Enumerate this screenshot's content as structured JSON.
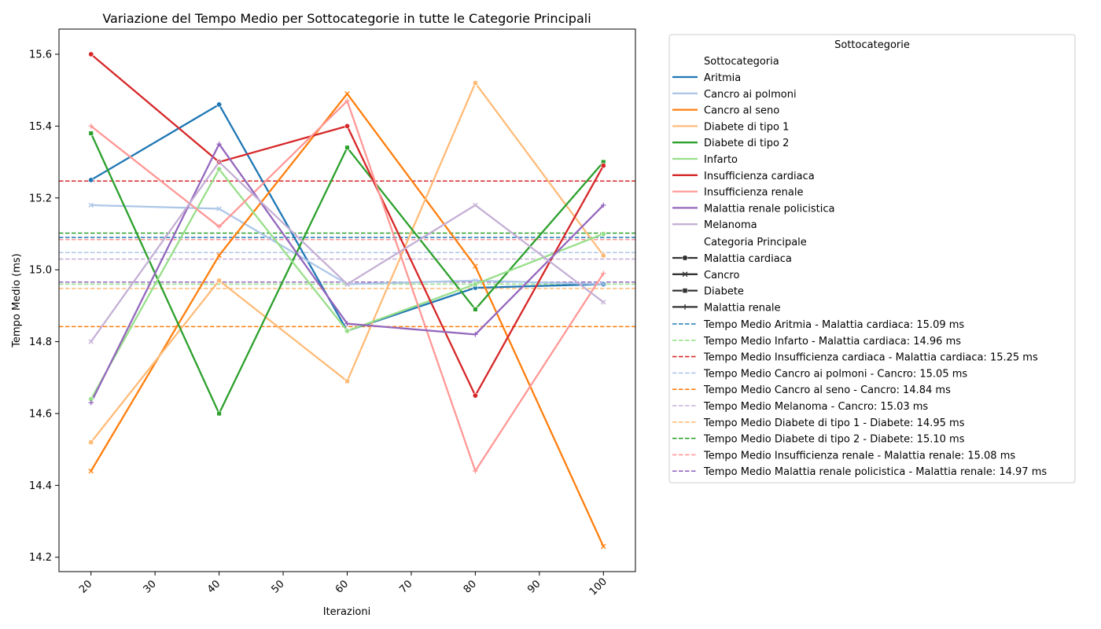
{
  "chart_data": {
    "type": "line",
    "title": "Variazione del Tempo Medio per Sottocategorie in tutte le Categorie Principali",
    "xlabel": "Iterazioni",
    "ylabel": "Tempo Medio (ms)",
    "xlim": [
      15,
      105
    ],
    "ylim": [
      14.16,
      15.67
    ],
    "x_ticks": [
      20,
      30,
      40,
      50,
      60,
      70,
      80,
      90,
      100
    ],
    "x_tick_labels": [
      "20",
      "30",
      "40",
      "50",
      "60",
      "70",
      "80",
      "90",
      "100"
    ],
    "y_ticks": [
      14.2,
      14.4,
      14.6,
      14.8,
      15.0,
      15.2,
      15.4,
      15.6
    ],
    "y_tick_labels": [
      "14.2",
      "14.4",
      "14.6",
      "14.8",
      "15.0",
      "15.2",
      "15.4",
      "15.6"
    ],
    "x": [
      20,
      40,
      60,
      80,
      100
    ],
    "grid": false,
    "legend_placement": "outside-right",
    "series": [
      {
        "name": "Aritmia",
        "category": "Malattia cardiaca",
        "color": "#1f77b4",
        "marker": "circle",
        "values": [
          15.25,
          15.46,
          14.83,
          14.95,
          14.96
        ]
      },
      {
        "name": "Cancro ai polmoni",
        "category": "Cancro",
        "color": "#aec7e8",
        "marker": "x",
        "values": [
          15.18,
          15.17,
          14.96,
          14.97,
          14.96
        ]
      },
      {
        "name": "Cancro al seno",
        "category": "Cancro",
        "color": "#ff7f0e",
        "marker": "x",
        "values": [
          14.44,
          15.04,
          15.49,
          15.01,
          14.23
        ]
      },
      {
        "name": "Diabete di tipo 1",
        "category": "Diabete",
        "color": "#ffbb78",
        "marker": "square",
        "values": [
          14.52,
          14.97,
          14.69,
          15.52,
          15.04
        ]
      },
      {
        "name": "Diabete di tipo 2",
        "category": "Diabete",
        "color": "#2ca02c",
        "marker": "square",
        "values": [
          15.38,
          14.6,
          15.34,
          14.89,
          15.3
        ]
      },
      {
        "name": "Infarto",
        "category": "Malattia cardiaca",
        "color": "#98df8a",
        "marker": "circle",
        "values": [
          14.64,
          15.28,
          14.83,
          14.96,
          15.1
        ]
      },
      {
        "name": "Insufficienza cardiaca",
        "category": "Malattia cardiaca",
        "color": "#d62728",
        "marker": "circle",
        "values": [
          15.6,
          15.3,
          15.4,
          14.65,
          15.29
        ]
      },
      {
        "name": "Insufficienza renale",
        "category": "Malattia renale",
        "color": "#ff9896",
        "marker": "plus",
        "values": [
          15.4,
          15.12,
          15.47,
          14.44,
          14.99
        ]
      },
      {
        "name": "Malattia renale policistica",
        "category": "Malattia renale",
        "color": "#9467bd",
        "marker": "plus",
        "values": [
          14.63,
          15.35,
          14.85,
          14.82,
          15.18
        ]
      },
      {
        "name": "Melanoma",
        "category": "Cancro",
        "color": "#c5b0d5",
        "marker": "x",
        "values": [
          14.8,
          15.3,
          14.96,
          15.18,
          14.91
        ]
      }
    ],
    "mean_lines": [
      {
        "label": "Tempo Medio Aritmia - Malattia cardiaca: 15.09 ms",
        "value": 15.09,
        "color": "#1f77b4"
      },
      {
        "label": "Tempo Medio Infarto - Malattia cardiaca: 14.96 ms",
        "value": 14.96,
        "color": "#98df8a"
      },
      {
        "label": "Tempo Medio Insufficienza cardiaca - Malattia cardiaca: 15.25 ms",
        "value": 15.247,
        "color": "#d62728"
      },
      {
        "label": "Tempo Medio Cancro ai polmoni - Cancro: 15.05 ms",
        "value": 15.048,
        "color": "#aec7e8"
      },
      {
        "label": "Tempo Medio Cancro al seno - Cancro: 14.84 ms",
        "value": 14.842,
        "color": "#ff7f0e"
      },
      {
        "label": "Tempo Medio Melanoma - Cancro: 15.03 ms",
        "value": 15.03,
        "color": "#c5b0d5"
      },
      {
        "label": "Tempo Medio Diabete di tipo 1 - Diabete: 14.95 ms",
        "value": 14.948,
        "color": "#ffbb78"
      },
      {
        "label": "Tempo Medio Diabete di tipo 2 - Diabete: 15.10 ms",
        "value": 15.102,
        "color": "#2ca02c"
      },
      {
        "label": "Tempo Medio Insufficienza renale - Malattia renale: 15.08 ms",
        "value": 15.084,
        "color": "#ff9896"
      },
      {
        "label": "Tempo Medio Malattia renale policistica - Malattia renale: 14.97 ms",
        "value": 14.966,
        "color": "#9467bd"
      }
    ],
    "legend": {
      "title": "Sottocategorie",
      "subcategory_header": "Sottocategoria",
      "category_header": "Categoria Principale",
      "categories": [
        {
          "name": "Malattia cardiaca",
          "marker": "circle"
        },
        {
          "name": "Cancro",
          "marker": "x"
        },
        {
          "name": "Diabete",
          "marker": "square"
        },
        {
          "name": "Malattia renale",
          "marker": "plus"
        }
      ]
    }
  }
}
